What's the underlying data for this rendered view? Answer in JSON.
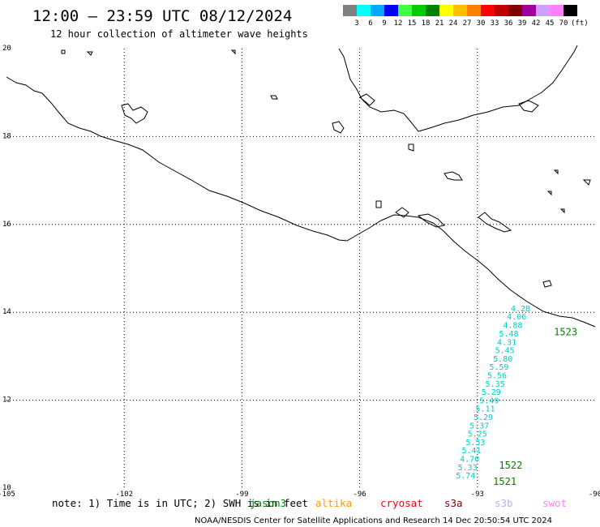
{
  "title": "12:00 – 23:59 UTC 08/12/2024",
  "subtitle": "12 hour collection of altimeter wave heights",
  "colorbar": {
    "colors": [
      "#808080",
      "#00ffff",
      "#00a8ff",
      "#0000ff",
      "#40ff40",
      "#00cc00",
      "#008000",
      "#ffff00",
      "#ffc000",
      "#ff8000",
      "#ff0000",
      "#c00000",
      "#800000",
      "#a000a0",
      "#d0a0ff",
      "#ff80ff",
      "#000000"
    ],
    "labels": [
      "3",
      "6",
      "9",
      "12",
      "15",
      "18",
      "21",
      "24",
      "27",
      "30",
      "33",
      "36",
      "39",
      "42",
      "45",
      "70"
    ],
    "unit": "(ft)"
  },
  "chart_data": {
    "type": "scatter",
    "lon_range": [
      -105,
      -90
    ],
    "lat_range": [
      10,
      20
    ],
    "x_ticks": [
      "-105",
      "-102",
      "-99",
      "-96",
      "-93",
      "-90"
    ],
    "y_ticks": [
      "20",
      "18",
      "16",
      "14",
      "12",
      "10"
    ],
    "grid": true,
    "observations": [
      {
        "lon": -91.9,
        "lat": 14.02,
        "swh": "4.28"
      },
      {
        "lon": -92.0,
        "lat": 13.84,
        "swh": "4.06"
      },
      {
        "lon": -92.1,
        "lat": 13.64,
        "swh": "4.88"
      },
      {
        "lon": -92.2,
        "lat": 13.45,
        "swh": "5.48"
      },
      {
        "lon": -92.25,
        "lat": 13.26,
        "swh": "4.31"
      },
      {
        "lon": -92.3,
        "lat": 13.07,
        "swh": "5.45"
      },
      {
        "lon": -92.35,
        "lat": 12.88,
        "swh": "5.80"
      },
      {
        "lon": -92.45,
        "lat": 12.69,
        "swh": "5.59"
      },
      {
        "lon": -92.5,
        "lat": 12.5,
        "swh": "5.56"
      },
      {
        "lon": -92.55,
        "lat": 12.31,
        "swh": "5.35"
      },
      {
        "lon": -92.65,
        "lat": 12.12,
        "swh": "5.29"
      },
      {
        "lon": -92.7,
        "lat": 11.93,
        "swh": "5.49"
      },
      {
        "lon": -92.8,
        "lat": 11.74,
        "swh": "5.11"
      },
      {
        "lon": -92.85,
        "lat": 11.55,
        "swh": "5.29"
      },
      {
        "lon": -92.95,
        "lat": 11.36,
        "swh": "5.37"
      },
      {
        "lon": -93.0,
        "lat": 11.17,
        "swh": "5.25"
      },
      {
        "lon": -93.05,
        "lat": 10.98,
        "swh": "5.53"
      },
      {
        "lon": -93.15,
        "lat": 10.79,
        "swh": "5.41"
      },
      {
        "lon": -93.2,
        "lat": 10.6,
        "swh": "4.70"
      },
      {
        "lon": -93.25,
        "lat": 10.41,
        "swh": "5.33"
      },
      {
        "lon": -93.3,
        "lat": 10.22,
        "swh": "5.74"
      }
    ],
    "pass_labels": [
      {
        "lon": -91.05,
        "lat": 13.48,
        "text": "1523"
      },
      {
        "lon": -92.45,
        "lat": 10.44,
        "text": "1522"
      },
      {
        "lon": -92.6,
        "lat": 10.07,
        "text": "1521"
      }
    ]
  },
  "note": {
    "prefix": "note: 1) Time is in UTC; 2) SWH is in feet",
    "satellites": [
      {
        "name": "jason3",
        "color": "#008000"
      },
      {
        "name": "altika",
        "color": "#ff9900"
      },
      {
        "name": "cryosat",
        "color": "#ff0000"
      },
      {
        "name": "s3a",
        "color": "#800000"
      },
      {
        "name": "s3b",
        "color": "#c8a8ff"
      },
      {
        "name": "swot",
        "color": "#ff80ff"
      }
    ]
  },
  "obs_color": "#00cccc",
  "pass_color": "#008000",
  "credit": "NOAA/NESDIS Center for Satellite Applications and Research   14 Dec 20:50:54 UTC 2024"
}
